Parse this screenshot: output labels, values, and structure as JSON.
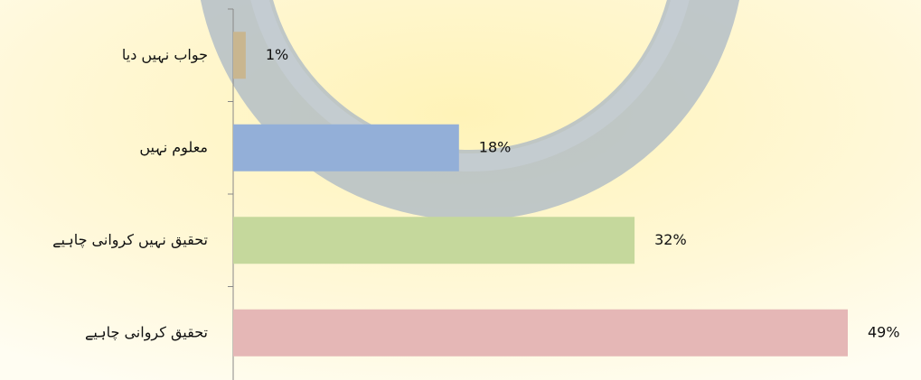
{
  "chart_data": {
    "type": "bar",
    "orientation": "horizontal",
    "categories": [
      "جواب نہیں دیا",
      "معلوم نہیں",
      "تحقیق نہیں کروانی چاہیے",
      "تحقیق کروانی چاہیے"
    ],
    "values": [
      1,
      18,
      32,
      49
    ],
    "value_labels": [
      "1%",
      "18%",
      "32%",
      "49%"
    ],
    "colors": [
      "#c9b68f",
      "#93afd8",
      "#c5d89c",
      "#e5b7b6"
    ]
  }
}
